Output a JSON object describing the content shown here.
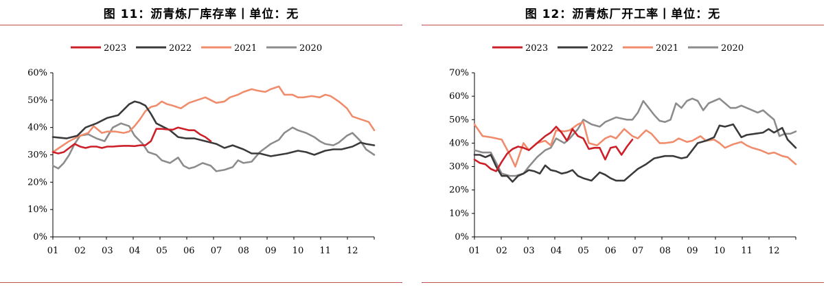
{
  "figures": [
    {
      "title": "图 11：沥青炼厂库存率丨单位：无",
      "rule_color": "#c0504d",
      "chart_data": {
        "type": "line",
        "x_tick_labels": [
          "01",
          "02",
          "03",
          "04",
          "05",
          "06",
          "07",
          "08",
          "09",
          "10",
          "11",
          "12"
        ],
        "x_range": [
          1,
          12.8
        ],
        "y_tick_labels": [
          "0%",
          "10%",
          "20%",
          "30%",
          "40%",
          "50%",
          "60%"
        ],
        "ylim": [
          0,
          60
        ],
        "grid": false,
        "legend_position": "top",
        "series": [
          {
            "name": "2023",
            "color": "#cc1f27",
            "x": [
              1,
              1.2,
              1.4,
              1.6,
              1.8,
              2,
              2.2,
              2.4,
              2.6,
              2.8,
              3,
              3.2,
              3.4,
              3.6,
              3.8,
              4,
              4.2,
              4.4,
              4.6,
              4.8,
              5,
              5.2,
              5.4,
              5.6,
              5.8,
              6,
              6.2,
              6.4,
              6.6,
              6.8
            ],
            "y": [
              31,
              30.5,
              31,
              32.5,
              34,
              33,
              32.5,
              33,
              33,
              32.5,
              33,
              33,
              33.2,
              33.3,
              33.3,
              33.2,
              33.5,
              33.5,
              35,
              39.5,
              39.5,
              39.3,
              39.2,
              40,
              39.5,
              39,
              39,
              37.5,
              36.5,
              35
            ]
          },
          {
            "name": "2022",
            "color": "#3a3a3a",
            "x": [
              1,
              1.5,
              1.9,
              2.2,
              2.6,
              3,
              3.4,
              3.8,
              4,
              4.2,
              4.4,
              4.6,
              4.8,
              5,
              5.3,
              5.6,
              5.9,
              6.2,
              6.6,
              7,
              7.3,
              7.6,
              8,
              8.3,
              8.6,
              9,
              9.3,
              9.6,
              10,
              10.3,
              10.6,
              11,
              11.3,
              11.6,
              12,
              12.3,
              12.5,
              12.8
            ],
            "y": [
              36.5,
              36,
              37,
              40,
              41.5,
              43.5,
              44.5,
              48.5,
              49.5,
              49,
              48,
              45,
              41.5,
              40.5,
              39,
              36.5,
              36,
              36,
              35,
              34,
              32.5,
              33.5,
              32,
              30.5,
              30.5,
              29.5,
              30,
              30.5,
              31.5,
              31,
              30,
              31.5,
              32,
              32,
              33,
              34.5,
              34,
              33.5
            ]
          },
          {
            "name": "2021",
            "color": "#f08c6c",
            "x": [
              1,
              1.3,
              1.6,
              2,
              2.3,
              2.5,
              2.8,
              3,
              3.3,
              3.6,
              3.8,
              4,
              4.2,
              4.4,
              4.6,
              4.8,
              5,
              5.2,
              5.4,
              5.7,
              6,
              6.3,
              6.6,
              6.8,
              7,
              7.3,
              7.5,
              7.8,
              8,
              8.3,
              8.5,
              8.8,
              9,
              9.3,
              9.5,
              9.8,
              10,
              10.2,
              10.5,
              10.8,
              11,
              11.2,
              11.5,
              11.8,
              12,
              12.3,
              12.6,
              12.8
            ],
            "y": [
              31,
              33,
              35,
              37,
              38,
              40.5,
              38,
              38.5,
              38.5,
              38,
              38.5,
              40.5,
              43,
              46,
              47.5,
              48,
              49.5,
              48.5,
              48,
              47,
              49,
              50,
              51,
              50,
              49,
              49.5,
              51,
              52,
              53,
              54,
              53.5,
              53,
              54,
              55,
              52,
              52,
              51,
              51,
              51.5,
              51,
              52,
              51.5,
              49.5,
              47,
              44,
              43,
              42,
              39
            ]
          },
          {
            "name": "2020",
            "color": "#8c8c8c",
            "x": [
              1,
              1.2,
              1.4,
              1.6,
              1.8,
              2,
              2.3,
              2.6,
              2.9,
              3.2,
              3.5,
              3.8,
              4,
              4.3,
              4.5,
              4.8,
              5,
              5.3,
              5.6,
              5.8,
              6,
              6.2,
              6.5,
              6.8,
              7,
              7.3,
              7.6,
              7.8,
              8,
              8.3,
              8.6,
              8.8,
              9,
              9.3,
              9.5,
              9.8,
              10,
              10.3,
              10.6,
              10.8,
              11,
              11.3,
              11.5,
              11.8,
              12,
              12.3,
              12.5,
              12.8
            ],
            "y": [
              26,
              25,
              27,
              30,
              34,
              37,
              37.5,
              36,
              35,
              40,
              41.5,
              40.5,
              37,
              34,
              31,
              30,
              28,
              27,
              29,
              26,
              25,
              25.5,
              27,
              26,
              24,
              24.5,
              25.5,
              28,
              27,
              27.5,
              31,
              32.5,
              34,
              35.5,
              38,
              40,
              39,
              38,
              36.5,
              35,
              34,
              33.5,
              34.5,
              37,
              38,
              35,
              32,
              30
            ]
          }
        ]
      }
    },
    {
      "title": "图 12：沥青炼厂开工率丨单位：无",
      "rule_color": "#c0504d",
      "chart_data": {
        "type": "line",
        "x_tick_labels": [
          "01",
          "02",
          "03",
          "04",
          "05",
          "06",
          "07",
          "08",
          "09",
          "10",
          "11",
          "12"
        ],
        "x_range": [
          1,
          12.8
        ],
        "y_tick_labels": [
          "0%",
          "10%",
          "20%",
          "30%",
          "40%",
          "50%",
          "60%",
          "70%"
        ],
        "ylim": [
          0,
          70
        ],
        "grid": false,
        "legend_position": "top",
        "series": [
          {
            "name": "2023",
            "color": "#cc1f27",
            "x": [
              1,
              1.2,
              1.4,
              1.6,
              1.8,
              2,
              2.2,
              2.4,
              2.6,
              2.8,
              3,
              3.2,
              3.4,
              3.6,
              3.8,
              4,
              4.2,
              4.4,
              4.6,
              4.8,
              5,
              5.2,
              5.4,
              5.6,
              5.8,
              6,
              6.2,
              6.4,
              6.6,
              6.8
            ],
            "y": [
              33,
              31.5,
              31,
              29,
              28,
              32,
              35.5,
              37.5,
              38.5,
              38,
              37,
              39,
              41,
              43,
              44.5,
              47,
              44.5,
              41,
              46,
              43,
              42,
              37.5,
              38,
              38,
              33,
              38,
              38.5,
              35,
              38.5,
              41.5
            ]
          },
          {
            "name": "2022",
            "color": "#3a3a3a",
            "x": [
              1,
              1.2,
              1.4,
              1.6,
              1.8,
              2,
              2.2,
              2.4,
              2.6,
              2.8,
              3,
              3.2,
              3.4,
              3.6,
              3.8,
              4,
              4.2,
              4.4,
              4.6,
              4.8,
              5,
              5.3,
              5.6,
              5.8,
              6,
              6.2,
              6.5,
              6.8,
              7,
              7.3,
              7.6,
              8,
              8.3,
              8.6,
              8.8,
              9,
              9.2,
              9.5,
              9.8,
              10,
              10.2,
              10.5,
              10.8,
              11,
              11.3,
              11.6,
              11.8,
              12,
              12.3,
              12.5,
              12.8
            ],
            "y": [
              35,
              35,
              34,
              35,
              30,
              26,
              26,
              23.5,
              26,
              27,
              28.5,
              28,
              27,
              30.5,
              28.5,
              28,
              27,
              27.5,
              28.5,
              26,
              25,
              24,
              27.5,
              26.5,
              25,
              24,
              24,
              27,
              29,
              31,
              33.5,
              34.5,
              34.5,
              33.5,
              34,
              37,
              40,
              41,
              42.5,
              47.5,
              47,
              48,
              42.5,
              43.5,
              44,
              44.5,
              46,
              44.5,
              46.5,
              41.5,
              38
            ]
          },
          {
            "name": "2021",
            "color": "#f08c6c",
            "x": [
              1,
              1.3,
              1.6,
              2,
              2.3,
              2.5,
              2.8,
              3,
              3.3,
              3.6,
              3.8,
              4,
              4.3,
              4.5,
              4.8,
              5,
              5.2,
              5.5,
              5.8,
              6,
              6.2,
              6.5,
              6.8,
              7,
              7.3,
              7.5,
              7.8,
              8,
              8.3,
              8.5,
              8.8,
              9,
              9.3,
              9.5,
              9.8,
              10,
              10.2,
              10.5,
              10.8,
              11,
              11.2,
              11.5,
              11.8,
              12,
              12.3,
              12.5,
              12.8
            ],
            "y": [
              48,
              43,
              42.5,
              41.5,
              35,
              30,
              40,
              37,
              40,
              41,
              39,
              45.5,
              45,
              45.5,
              48,
              49,
              40,
              39,
              42,
              43,
              42,
              46,
              43,
              42,
              45.5,
              44,
              40,
              40,
              40.5,
              42,
              40.5,
              41,
              43,
              41,
              41.5,
              40,
              38,
              39.5,
              40.5,
              39,
              38,
              37,
              35.5,
              36,
              34.5,
              34,
              31
            ]
          },
          {
            "name": "2020",
            "color": "#8c8c8c",
            "x": [
              1,
              1.3,
              1.6,
              2,
              2.3,
              2.5,
              2.8,
              3,
              3.3,
              3.6,
              3.8,
              4,
              4.3,
              4.5,
              4.8,
              5,
              5.3,
              5.6,
              5.8,
              6,
              6.2,
              6.4,
              6.6,
              6.8,
              7,
              7.2,
              7.4,
              7.6,
              7.8,
              8,
              8.2,
              8.4,
              8.6,
              8.8,
              9,
              9.2,
              9.4,
              9.6,
              9.8,
              10,
              10.2,
              10.4,
              10.6,
              10.8,
              11,
              11.2,
              11.4,
              11.6,
              11.8,
              12,
              12.2,
              12.4,
              12.6,
              12.8
            ],
            "y": [
              37,
              36,
              36,
              27,
              26,
              26,
              27,
              30,
              34,
              37,
              38,
              42,
              40,
              42,
              46,
              50,
              48,
              47,
              49,
              50,
              51,
              50.5,
              50,
              50,
              53,
              58,
              55,
              52,
              49.5,
              49,
              50,
              57,
              55,
              58,
              59,
              58,
              54,
              57,
              58,
              59,
              57,
              55,
              55,
              56,
              55,
              54,
              53,
              54,
              52,
              50,
              43,
              44,
              44,
              45
            ]
          }
        ]
      }
    }
  ]
}
